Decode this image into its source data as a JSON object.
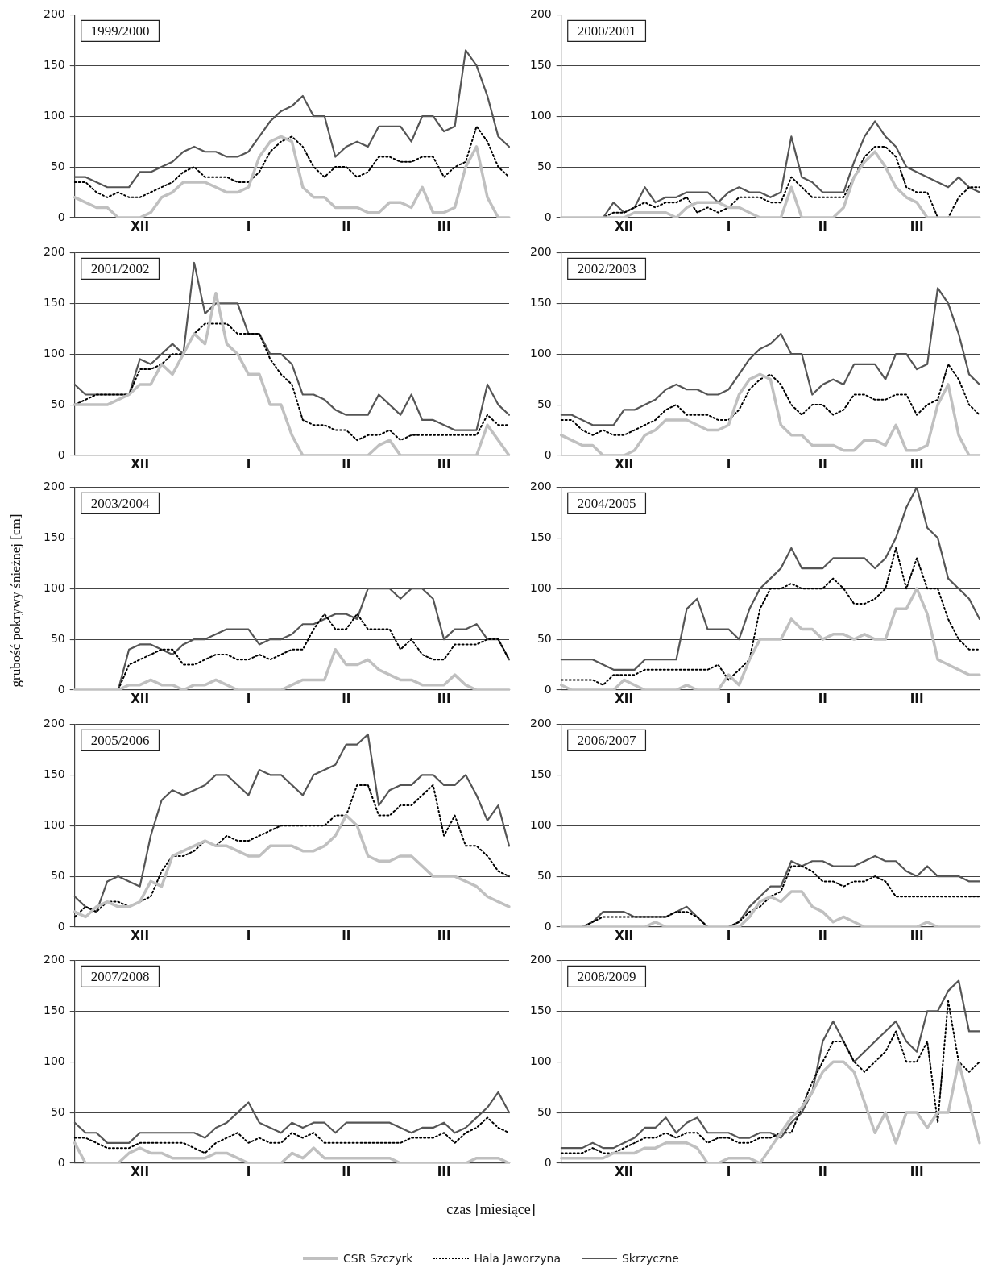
{
  "chart_data": [
    {
      "type": "line",
      "title": "1999/2000",
      "legend": "bottom",
      "grid": "y",
      "marker": "none",
      "categories": [
        null,
        null,
        null,
        null,
        null,
        null,
        "XII",
        null,
        null,
        null,
        null,
        null,
        null,
        null,
        null,
        null,
        "I",
        null,
        null,
        null,
        null,
        null,
        null,
        null,
        null,
        "II",
        null,
        null,
        null,
        null,
        null,
        null,
        null,
        null,
        "III",
        null,
        null,
        null,
        null,
        null,
        null
      ],
      "ylim": [
        0,
        200
      ],
      "yticks": [
        0,
        50,
        100,
        150,
        200
      ],
      "series": [
        {
          "name": "CSR Szczyrk",
          "color": "#c0c0c0",
          "line_style": "solid",
          "values": [
            20,
            15,
            10,
            10,
            0,
            0,
            0,
            5,
            20,
            25,
            35,
            35,
            35,
            30,
            25,
            25,
            30,
            60,
            75,
            80,
            75,
            30,
            20,
            20,
            10,
            10,
            10,
            5,
            5,
            15,
            15,
            10,
            30,
            5,
            5,
            10,
            50,
            70,
            20,
            0,
            0
          ]
        },
        {
          "name": "Hala Jaworzyna",
          "color": "#000000",
          "line_style": "dotted",
          "values": [
            35,
            35,
            25,
            20,
            25,
            20,
            20,
            25,
            30,
            35,
            45,
            50,
            40,
            40,
            40,
            35,
            35,
            45,
            65,
            75,
            80,
            70,
            50,
            40,
            50,
            50,
            40,
            45,
            60,
            60,
            55,
            55,
            60,
            60,
            40,
            50,
            55,
            90,
            75,
            50,
            40
          ]
        },
        {
          "name": "Skrzyczne",
          "color": "#555555",
          "line_style": "solid",
          "values": [
            40,
            40,
            35,
            30,
            30,
            30,
            45,
            45,
            50,
            55,
            65,
            70,
            65,
            65,
            60,
            60,
            65,
            80,
            95,
            105,
            110,
            120,
            100,
            100,
            60,
            70,
            75,
            70,
            90,
            90,
            90,
            75,
            100,
            100,
            85,
            90,
            165,
            150,
            120,
            80,
            70
          ]
        }
      ]
    },
    {
      "type": "line",
      "title": "2000/2001",
      "grid": "y",
      "marker": "none",
      "categories": [
        null,
        null,
        null,
        null,
        null,
        null,
        "XII",
        null,
        null,
        null,
        null,
        null,
        null,
        null,
        null,
        null,
        "I",
        null,
        null,
        null,
        null,
        null,
        null,
        null,
        null,
        "II",
        null,
        null,
        null,
        null,
        null,
        null,
        null,
        null,
        "III",
        null,
        null,
        null,
        null,
        null,
        null
      ],
      "ylim": [
        0,
        200
      ],
      "yticks": [
        0,
        50,
        100,
        150,
        200
      ],
      "series": [
        {
          "color": "#c0c0c0",
          "line_style": "solid",
          "values": [
            0,
            0,
            0,
            0,
            0,
            0,
            0,
            5,
            5,
            5,
            5,
            0,
            10,
            15,
            15,
            15,
            10,
            10,
            5,
            0,
            0,
            0,
            30,
            0,
            0,
            0,
            0,
            10,
            40,
            55,
            65,
            50,
            30,
            20,
            15,
            0,
            0,
            0,
            0,
            0,
            0
          ]
        },
        {
          "color": "#000000",
          "line_style": "dotted",
          "values": [
            0,
            0,
            0,
            0,
            0,
            5,
            5,
            10,
            15,
            10,
            15,
            15,
            20,
            5,
            10,
            5,
            10,
            20,
            20,
            20,
            15,
            15,
            40,
            30,
            20,
            20,
            20,
            20,
            40,
            60,
            70,
            70,
            60,
            30,
            25,
            25,
            0,
            0,
            20,
            30,
            30
          ]
        },
        {
          "color": "#555555",
          "line_style": "solid",
          "values": [
            0,
            0,
            0,
            0,
            0,
            15,
            5,
            10,
            30,
            15,
            20,
            20,
            25,
            25,
            25,
            15,
            25,
            30,
            25,
            25,
            20,
            25,
            80,
            40,
            35,
            25,
            25,
            25,
            55,
            80,
            95,
            80,
            70,
            50,
            45,
            40,
            35,
            30,
            40,
            30,
            25
          ]
        }
      ]
    },
    {
      "type": "line",
      "title": "2001/2002",
      "grid": "y",
      "marker": "none",
      "categories": [
        null,
        null,
        null,
        null,
        null,
        null,
        "XII",
        null,
        null,
        null,
        null,
        null,
        null,
        null,
        null,
        null,
        "I",
        null,
        null,
        null,
        null,
        null,
        null,
        null,
        null,
        "II",
        null,
        null,
        null,
        null,
        null,
        null,
        null,
        null,
        "III",
        null,
        null,
        null,
        null,
        null,
        null
      ],
      "ylim": [
        0,
        200
      ],
      "yticks": [
        0,
        50,
        100,
        150,
        200
      ],
      "series": [
        {
          "color": "#c0c0c0",
          "line_style": "solid",
          "values": [
            50,
            50,
            50,
            50,
            55,
            60,
            70,
            70,
            90,
            80,
            100,
            120,
            110,
            160,
            110,
            100,
            80,
            80,
            50,
            50,
            20,
            0,
            0,
            0,
            0,
            0,
            0,
            0,
            10,
            15,
            0,
            0,
            0,
            0,
            0,
            0,
            0,
            0,
            30,
            15,
            0
          ]
        },
        {
          "color": "#000000",
          "line_style": "dotted",
          "values": [
            50,
            55,
            60,
            60,
            60,
            60,
            85,
            85,
            90,
            100,
            100,
            120,
            130,
            130,
            130,
            120,
            120,
            120,
            95,
            80,
            70,
            35,
            30,
            30,
            25,
            25,
            15,
            20,
            20,
            25,
            15,
            20,
            20,
            20,
            20,
            20,
            20,
            20,
            40,
            30,
            30
          ]
        },
        {
          "color": "#555555",
          "line_style": "solid",
          "values": [
            70,
            60,
            60,
            60,
            60,
            60,
            95,
            90,
            100,
            110,
            100,
            190,
            140,
            150,
            150,
            150,
            120,
            120,
            100,
            100,
            90,
            60,
            60,
            55,
            45,
            40,
            40,
            40,
            60,
            50,
            40,
            60,
            35,
            35,
            30,
            25,
            25,
            25,
            70,
            50,
            40
          ]
        }
      ]
    },
    {
      "type": "line",
      "title": "2002/2003",
      "grid": "y",
      "marker": "none",
      "categories": [
        null,
        null,
        null,
        null,
        null,
        null,
        "XII",
        null,
        null,
        null,
        null,
        null,
        null,
        null,
        null,
        null,
        "I",
        null,
        null,
        null,
        null,
        null,
        null,
        null,
        null,
        "II",
        null,
        null,
        null,
        null,
        null,
        null,
        null,
        null,
        "III",
        null,
        null,
        null,
        null,
        null,
        null
      ],
      "ylim": [
        0,
        200
      ],
      "yticks": [
        0,
        50,
        100,
        150,
        200
      ],
      "series": [
        {
          "color": "#c0c0c0",
          "line_style": "solid",
          "values": [
            20,
            15,
            10,
            10,
            0,
            0,
            0,
            5,
            20,
            25,
            35,
            35,
            35,
            30,
            25,
            25,
            30,
            60,
            75,
            80,
            75,
            30,
            20,
            20,
            10,
            10,
            10,
            5,
            5,
            15,
            15,
            10,
            30,
            5,
            5,
            10,
            50,
            70,
            20,
            0,
            0
          ]
        },
        {
          "color": "#000000",
          "line_style": "dotted",
          "values": [
            35,
            35,
            25,
            20,
            25,
            20,
            20,
            25,
            30,
            35,
            45,
            50,
            40,
            40,
            40,
            35,
            35,
            45,
            65,
            75,
            80,
            70,
            50,
            40,
            50,
            50,
            40,
            45,
            60,
            60,
            55,
            55,
            60,
            60,
            40,
            50,
            55,
            90,
            75,
            50,
            40
          ]
        },
        {
          "color": "#555555",
          "line_style": "solid",
          "values": [
            40,
            40,
            35,
            30,
            30,
            30,
            45,
            45,
            50,
            55,
            65,
            70,
            65,
            65,
            60,
            60,
            65,
            80,
            95,
            105,
            110,
            120,
            100,
            100,
            60,
            70,
            75,
            70,
            90,
            90,
            90,
            75,
            100,
            100,
            85,
            90,
            165,
            150,
            120,
            80,
            70
          ]
        }
      ]
    },
    {
      "type": "line",
      "title": "2003/2004",
      "ylabel": "grubość pokrywy śnieżnej [cm]",
      "grid": "y",
      "marker": "none",
      "categories": [
        null,
        null,
        null,
        null,
        null,
        null,
        "XII",
        null,
        null,
        null,
        null,
        null,
        null,
        null,
        null,
        null,
        "I",
        null,
        null,
        null,
        null,
        null,
        null,
        null,
        null,
        "II",
        null,
        null,
        null,
        null,
        null,
        null,
        null,
        null,
        "III",
        null,
        null,
        null,
        null,
        null,
        null
      ],
      "ylim": [
        0,
        200
      ],
      "yticks": [
        0,
        50,
        100,
        150,
        200
      ],
      "series": [
        {
          "color": "#c0c0c0",
          "line_style": "solid",
          "values": [
            0,
            0,
            0,
            0,
            0,
            5,
            5,
            10,
            5,
            5,
            0,
            5,
            5,
            10,
            5,
            0,
            0,
            0,
            0,
            0,
            5,
            10,
            10,
            10,
            40,
            25,
            25,
            30,
            20,
            15,
            10,
            10,
            5,
            5,
            5,
            15,
            5,
            0,
            0,
            0,
            0
          ]
        },
        {
          "color": "#000000",
          "line_style": "dotted",
          "values": [
            0,
            0,
            0,
            0,
            0,
            25,
            30,
            35,
            40,
            40,
            25,
            25,
            30,
            35,
            35,
            30,
            30,
            35,
            30,
            35,
            40,
            40,
            60,
            75,
            60,
            60,
            75,
            60,
            60,
            60,
            40,
            50,
            35,
            30,
            30,
            45,
            45,
            45,
            50,
            50,
            30
          ]
        },
        {
          "color": "#555555",
          "line_style": "solid",
          "values": [
            0,
            0,
            0,
            0,
            0,
            40,
            45,
            45,
            40,
            35,
            45,
            50,
            50,
            55,
            60,
            60,
            60,
            45,
            50,
            50,
            55,
            65,
            65,
            70,
            75,
            75,
            70,
            100,
            100,
            100,
            90,
            100,
            100,
            90,
            50,
            60,
            60,
            65,
            50,
            50,
            30
          ]
        }
      ]
    },
    {
      "type": "line",
      "title": "2004/2005",
      "grid": "y",
      "marker": "none",
      "categories": [
        null,
        null,
        null,
        null,
        null,
        null,
        "XII",
        null,
        null,
        null,
        null,
        null,
        null,
        null,
        null,
        null,
        "I",
        null,
        null,
        null,
        null,
        null,
        null,
        null,
        null,
        "II",
        null,
        null,
        null,
        null,
        null,
        null,
        null,
        null,
        "III",
        null,
        null,
        null,
        null,
        null,
        null
      ],
      "ylim": [
        0,
        200
      ],
      "yticks": [
        0,
        50,
        100,
        150,
        200
      ],
      "series": [
        {
          "color": "#c0c0c0",
          "line_style": "solid",
          "values": [
            5,
            0,
            0,
            0,
            0,
            0,
            10,
            5,
            0,
            0,
            0,
            0,
            5,
            0,
            0,
            0,
            15,
            5,
            30,
            50,
            50,
            50,
            70,
            60,
            60,
            50,
            55,
            55,
            50,
            55,
            50,
            50,
            80,
            80,
            100,
            75,
            30,
            25,
            20,
            15,
            15
          ]
        },
        {
          "color": "#000000",
          "line_style": "dotted",
          "values": [
            10,
            10,
            10,
            10,
            5,
            15,
            15,
            15,
            20,
            20,
            20,
            20,
            20,
            20,
            20,
            25,
            10,
            20,
            30,
            80,
            100,
            100,
            105,
            100,
            100,
            100,
            110,
            100,
            85,
            85,
            90,
            100,
            140,
            100,
            130,
            100,
            100,
            70,
            50,
            40,
            40
          ]
        },
        {
          "color": "#555555",
          "line_style": "solid",
          "values": [
            30,
            30,
            30,
            30,
            25,
            20,
            20,
            20,
            30,
            30,
            30,
            30,
            80,
            90,
            60,
            60,
            60,
            50,
            80,
            100,
            110,
            120,
            140,
            120,
            120,
            120,
            130,
            130,
            130,
            130,
            120,
            130,
            150,
            180,
            200,
            160,
            150,
            110,
            100,
            90,
            70
          ]
        }
      ]
    },
    {
      "type": "line",
      "title": "2005/2006",
      "grid": "y",
      "marker": "none",
      "categories": [
        null,
        null,
        null,
        null,
        null,
        null,
        "XII",
        null,
        null,
        null,
        null,
        null,
        null,
        null,
        null,
        null,
        "I",
        null,
        null,
        null,
        null,
        null,
        null,
        null,
        null,
        "II",
        null,
        null,
        null,
        null,
        null,
        null,
        null,
        null,
        "III",
        null,
        null,
        null,
        null,
        null,
        null
      ],
      "ylim": [
        0,
        200
      ],
      "yticks": [
        0,
        50,
        100,
        150,
        200
      ],
      "series": [
        {
          "color": "#c0c0c0",
          "line_style": "solid",
          "values": [
            15,
            10,
            20,
            25,
            20,
            20,
            25,
            45,
            40,
            70,
            75,
            80,
            85,
            80,
            80,
            75,
            70,
            70,
            80,
            80,
            80,
            75,
            75,
            80,
            90,
            110,
            100,
            70,
            65,
            65,
            70,
            70,
            60,
            50,
            50,
            50,
            45,
            40,
            30,
            25,
            20
          ]
        },
        {
          "color": "#000000",
          "line_style": "dotted",
          "values": [
            10,
            20,
            15,
            25,
            25,
            20,
            25,
            30,
            55,
            70,
            70,
            75,
            85,
            80,
            90,
            85,
            85,
            90,
            95,
            100,
            100,
            100,
            100,
            100,
            110,
            110,
            140,
            140,
            110,
            110,
            120,
            120,
            130,
            140,
            90,
            110,
            80,
            80,
            70,
            55,
            50
          ]
        },
        {
          "color": "#555555",
          "line_style": "solid",
          "values": [
            30,
            20,
            15,
            45,
            50,
            45,
            40,
            90,
            125,
            135,
            130,
            135,
            140,
            150,
            150,
            140,
            130,
            155,
            150,
            150,
            140,
            130,
            150,
            155,
            160,
            180,
            180,
            190,
            120,
            135,
            140,
            140,
            150,
            150,
            140,
            140,
            150,
            130,
            105,
            120,
            80
          ]
        }
      ]
    },
    {
      "type": "line",
      "title": "2006/2007",
      "grid": "y",
      "marker": "none",
      "categories": [
        null,
        null,
        null,
        null,
        null,
        null,
        "XII",
        null,
        null,
        null,
        null,
        null,
        null,
        null,
        null,
        null,
        "I",
        null,
        null,
        null,
        null,
        null,
        null,
        null,
        null,
        "II",
        null,
        null,
        null,
        null,
        null,
        null,
        null,
        null,
        "III",
        null,
        null,
        null,
        null,
        null,
        null
      ],
      "ylim": [
        0,
        200
      ],
      "yticks": [
        0,
        50,
        100,
        150,
        200
      ],
      "series": [
        {
          "color": "#c0c0c0",
          "line_style": "solid",
          "values": [
            0,
            0,
            0,
            0,
            0,
            0,
            0,
            0,
            0,
            5,
            0,
            0,
            0,
            0,
            0,
            0,
            0,
            0,
            10,
            25,
            30,
            25,
            35,
            35,
            20,
            15,
            5,
            10,
            5,
            0,
            0,
            0,
            0,
            0,
            0,
            5,
            0,
            0,
            0,
            0,
            0
          ]
        },
        {
          "color": "#000000",
          "line_style": "dotted",
          "values": [
            0,
            0,
            0,
            5,
            10,
            10,
            10,
            10,
            10,
            10,
            10,
            15,
            15,
            10,
            0,
            0,
            0,
            5,
            15,
            20,
            30,
            35,
            60,
            60,
            55,
            45,
            45,
            40,
            45,
            45,
            50,
            45,
            30,
            30,
            30,
            30,
            30,
            30,
            30,
            30,
            30
          ]
        },
        {
          "color": "#555555",
          "line_style": "solid",
          "values": [
            0,
            0,
            0,
            5,
            15,
            15,
            15,
            10,
            10,
            10,
            10,
            15,
            20,
            10,
            0,
            0,
            0,
            5,
            20,
            30,
            40,
            40,
            65,
            60,
            65,
            65,
            60,
            60,
            60,
            65,
            70,
            65,
            65,
            55,
            50,
            60,
            50,
            50,
            50,
            45,
            45
          ]
        }
      ]
    },
    {
      "type": "line",
      "title": "2007/2008",
      "xlabel": "czas [miesiące]",
      "grid": "y",
      "marker": "none",
      "categories": [
        null,
        null,
        null,
        null,
        null,
        null,
        "XII",
        null,
        null,
        null,
        null,
        null,
        null,
        null,
        null,
        null,
        "I",
        null,
        null,
        null,
        null,
        null,
        null,
        null,
        null,
        "II",
        null,
        null,
        null,
        null,
        null,
        null,
        null,
        null,
        "III",
        null,
        null,
        null,
        null,
        null,
        null
      ],
      "ylim": [
        0,
        200
      ],
      "yticks": [
        0,
        50,
        100,
        150,
        200
      ],
      "series": [
        {
          "color": "#c0c0c0",
          "line_style": "solid",
          "values": [
            20,
            0,
            0,
            0,
            0,
            10,
            15,
            10,
            10,
            5,
            5,
            5,
            5,
            10,
            10,
            5,
            0,
            0,
            0,
            0,
            10,
            5,
            15,
            5,
            5,
            5,
            5,
            5,
            5,
            5,
            0,
            0,
            0,
            0,
            0,
            0,
            0,
            5,
            5,
            5,
            0
          ]
        },
        {
          "color": "#000000",
          "line_style": "dotted",
          "values": [
            25,
            25,
            20,
            15,
            15,
            15,
            20,
            20,
            20,
            20,
            20,
            15,
            10,
            20,
            25,
            30,
            20,
            25,
            20,
            20,
            30,
            25,
            30,
            20,
            20,
            20,
            20,
            20,
            20,
            20,
            20,
            25,
            25,
            25,
            30,
            20,
            30,
            35,
            45,
            35,
            30
          ]
        },
        {
          "color": "#555555",
          "line_style": "solid",
          "values": [
            40,
            30,
            30,
            20,
            20,
            20,
            30,
            30,
            30,
            30,
            30,
            30,
            25,
            35,
            40,
            50,
            60,
            40,
            35,
            30,
            40,
            35,
            40,
            40,
            30,
            40,
            40,
            40,
            40,
            40,
            35,
            30,
            35,
            35,
            40,
            30,
            35,
            45,
            55,
            70,
            50
          ]
        }
      ]
    },
    {
      "type": "line",
      "title": "2008/2009",
      "grid": "y",
      "marker": "none",
      "categories": [
        null,
        null,
        null,
        null,
        null,
        null,
        "XII",
        null,
        null,
        null,
        null,
        null,
        null,
        null,
        null,
        null,
        "I",
        null,
        null,
        null,
        null,
        null,
        null,
        null,
        null,
        "II",
        null,
        null,
        null,
        null,
        null,
        null,
        null,
        null,
        "III",
        null,
        null,
        null,
        null,
        null,
        null
      ],
      "ylim": [
        0,
        200
      ],
      "yticks": [
        0,
        50,
        100,
        150,
        200
      ],
      "series": [
        {
          "color": "#c0c0c0",
          "line_style": "solid",
          "values": [
            5,
            5,
            5,
            5,
            5,
            10,
            10,
            10,
            15,
            15,
            20,
            20,
            20,
            15,
            0,
            0,
            5,
            5,
            5,
            0,
            15,
            30,
            45,
            55,
            70,
            90,
            100,
            100,
            90,
            60,
            30,
            50,
            20,
            50,
            50,
            35,
            50,
            50,
            100,
            60,
            20
          ]
        },
        {
          "color": "#000000",
          "line_style": "dotted",
          "values": [
            10,
            10,
            10,
            15,
            10,
            10,
            15,
            20,
            25,
            25,
            30,
            25,
            30,
            30,
            20,
            25,
            25,
            20,
            20,
            25,
            25,
            30,
            30,
            55,
            80,
            100,
            120,
            120,
            100,
            90,
            100,
            110,
            130,
            100,
            100,
            120,
            40,
            160,
            100,
            90,
            100
          ]
        },
        {
          "color": "#555555",
          "line_style": "solid",
          "values": [
            15,
            15,
            15,
            20,
            15,
            15,
            20,
            25,
            35,
            35,
            45,
            30,
            40,
            45,
            30,
            30,
            30,
            25,
            25,
            30,
            30,
            25,
            40,
            50,
            70,
            120,
            140,
            120,
            100,
            110,
            120,
            130,
            140,
            120,
            110,
            150,
            150,
            170,
            180,
            130,
            130
          ]
        }
      ]
    }
  ]
}
